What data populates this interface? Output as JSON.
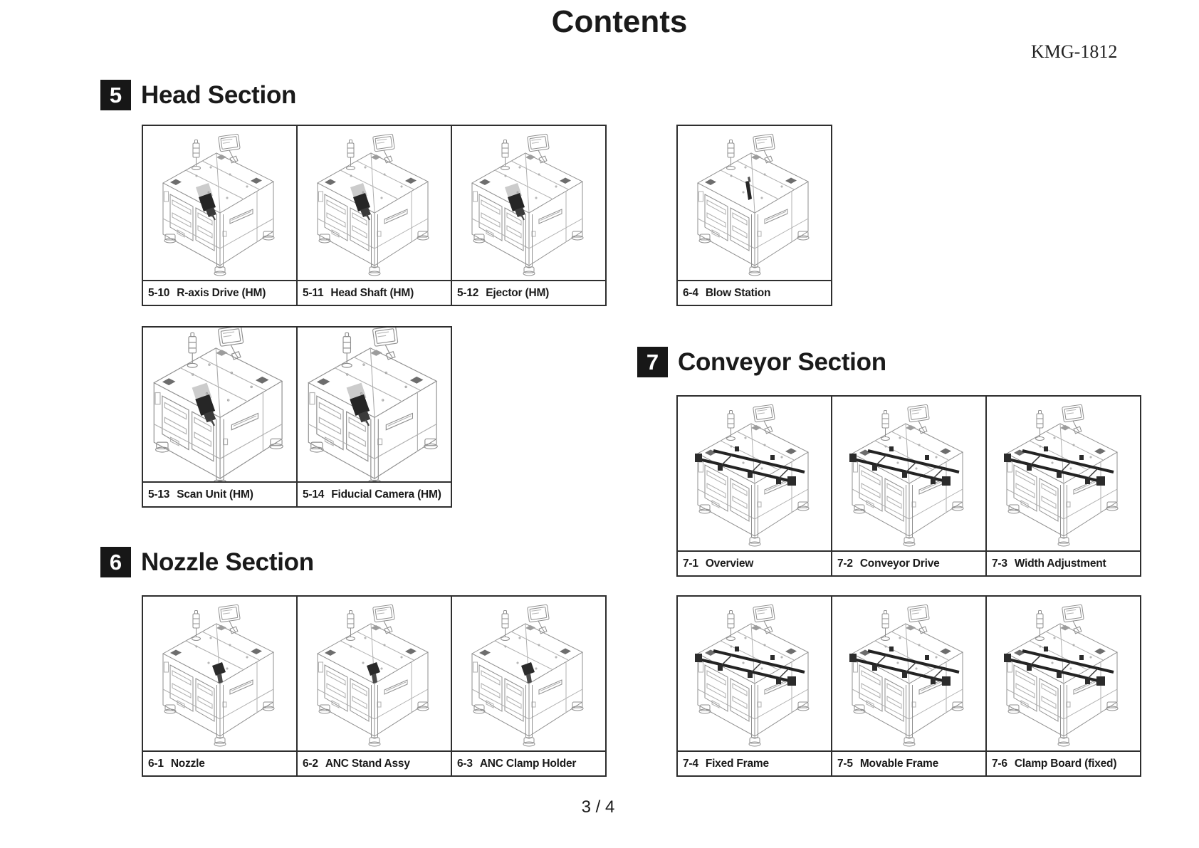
{
  "page": {
    "title": "Contents",
    "doc_code": "KMG-1812",
    "page_number": "3 / 4"
  },
  "sections": [
    {
      "number": "5",
      "title": "Head Section"
    },
    {
      "number": "6",
      "title": "Nozzle Section"
    },
    {
      "number": "7",
      "title": "Conveyor Section"
    }
  ],
  "grids": [
    {
      "name": "head-items-row-1",
      "items": [
        {
          "code": "5-10",
          "name": "R-axis Drive (HM)",
          "variant": "head"
        },
        {
          "code": "5-11",
          "name": "Head Shaft (HM)",
          "variant": "head"
        },
        {
          "code": "5-12",
          "name": "Ejector (HM)",
          "variant": "head"
        }
      ]
    },
    {
      "name": "blow-station-item",
      "items": [
        {
          "code": "6-4",
          "name": "Blow Station",
          "variant": "blow"
        }
      ]
    },
    {
      "name": "head-items-row-2",
      "items": [
        {
          "code": "5-13",
          "name": "Scan Unit (HM)",
          "variant": "head"
        },
        {
          "code": "5-14",
          "name": "Fiducial Camera (HM)",
          "variant": "head"
        }
      ]
    },
    {
      "name": "nozzle-items-row",
      "items": [
        {
          "code": "6-1",
          "name": "Nozzle",
          "variant": "nozzle"
        },
        {
          "code": "6-2",
          "name": "ANC Stand Assy",
          "variant": "nozzle"
        },
        {
          "code": "6-3",
          "name": "ANC Clamp Holder",
          "variant": "nozzle"
        }
      ]
    },
    {
      "name": "conveyor-items-row-1",
      "items": [
        {
          "code": "7-1",
          "name": "Overview",
          "variant": "conveyor"
        },
        {
          "code": "7-2",
          "name": "Conveyor Drive",
          "variant": "conveyor"
        },
        {
          "code": "7-3",
          "name": "Width Adjustment",
          "variant": "conveyor"
        }
      ]
    },
    {
      "name": "conveyor-items-row-2",
      "items": [
        {
          "code": "7-4",
          "name": "Fixed Frame",
          "variant": "conveyor"
        },
        {
          "code": "7-5",
          "name": "Movable Frame",
          "variant": "conveyor"
        },
        {
          "code": "7-6",
          "name": "Clamp Board (fixed)",
          "variant": "conveyor"
        }
      ]
    }
  ],
  "colors": {
    "ink": "#1a1a1a",
    "machine_line": "#8f8f8f"
  }
}
